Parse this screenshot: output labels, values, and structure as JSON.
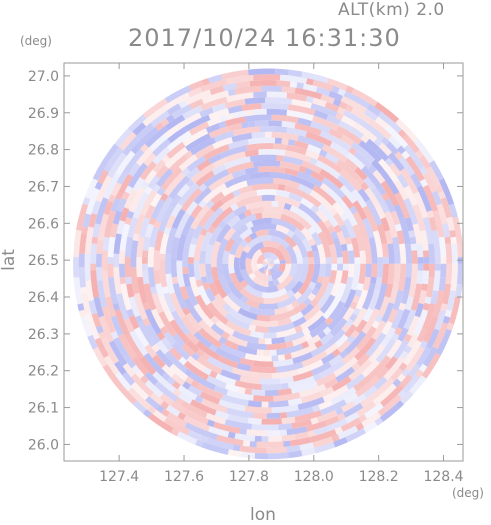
{
  "header": {
    "altitude_label": "ALT(km) 2.0",
    "timestamp": "2017/10/24 16:31:30"
  },
  "chart_data": {
    "type": "heatmap",
    "title": "2017/10/24 16:31:30",
    "subtitle": "ALT(km) 2.0",
    "xlabel": "lon",
    "ylabel": "lat",
    "xunit": "(deg)",
    "yunit": "(deg)",
    "xlim": [
      127.23,
      128.46
    ],
    "ylim": [
      25.955,
      27.035
    ],
    "xticks": [
      127.4,
      127.6,
      127.8,
      128.0,
      128.2,
      128.4
    ],
    "xtick_labels": [
      "127.4",
      "127.6",
      "127.8",
      "128.0",
      "128.2",
      "128.4"
    ],
    "yticks": [
      26.0,
      26.1,
      26.2,
      26.3,
      26.4,
      26.5,
      26.6,
      26.7,
      26.8,
      26.9,
      27.0
    ],
    "ytick_labels": [
      "26.0",
      "26.1",
      "26.2",
      "26.3",
      "26.4",
      "26.5",
      "26.6",
      "26.7",
      "26.8",
      "26.9",
      "27.0"
    ],
    "center": {
      "lon": 127.86,
      "lat": 26.49
    },
    "radar_radius_deg_lat": 0.53,
    "colors": {
      "positive": "#f4a6a6",
      "negative": "#a9aef0",
      "axis": "#9a9a9a",
      "text": "#8a8a8a"
    },
    "grid": false
  }
}
